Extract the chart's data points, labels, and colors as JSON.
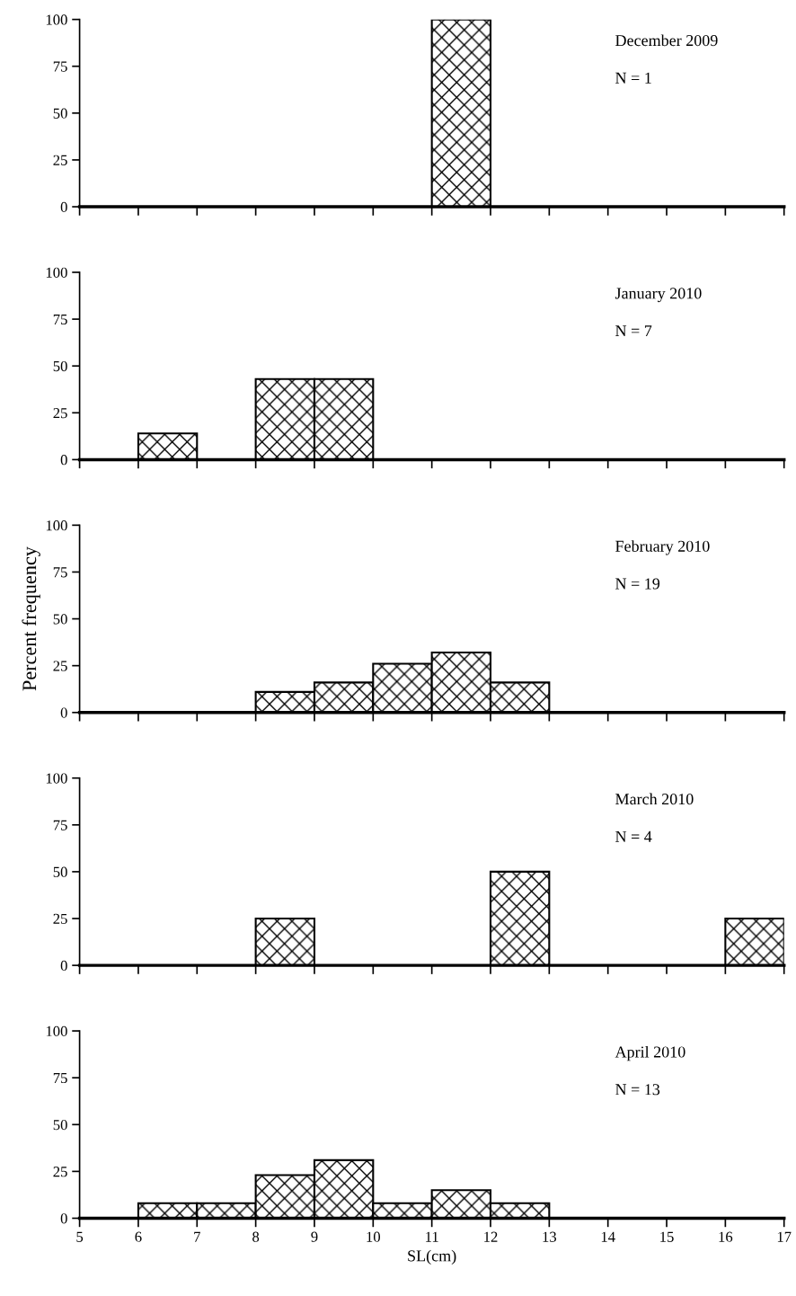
{
  "chart_data": [
    {
      "type": "histogram",
      "bins": [
        5,
        6,
        7,
        8,
        9,
        10,
        11,
        12,
        13,
        14,
        15,
        16,
        17
      ],
      "values": [
        0,
        0,
        0,
        0,
        0,
        0,
        100,
        0,
        0,
        0,
        0,
        0
      ],
      "color": "#000000",
      "annotations": [
        "December 2009",
        "N = 1"
      ],
      "xlim": [
        5,
        17
      ],
      "xticks": [
        5,
        6,
        7,
        8,
        9,
        10,
        11,
        12,
        13,
        14,
        15,
        16,
        17
      ],
      "ylim": [
        0,
        100
      ],
      "yticks": [
        0,
        25,
        50,
        75,
        100
      ],
      "tick_labels": "y",
      "grid": false,
      "legend": false
    },
    {
      "type": "histogram",
      "bins": [
        5,
        6,
        7,
        8,
        9,
        10,
        11,
        12,
        13,
        14,
        15,
        16,
        17
      ],
      "values": [
        0,
        14,
        0,
        43,
        43,
        0,
        0,
        0,
        0,
        0,
        0,
        0
      ],
      "color": "#000000",
      "annotations": [
        "January 2010",
        "N = 7"
      ],
      "xlim": [
        5,
        17
      ],
      "xticks": [
        5,
        6,
        7,
        8,
        9,
        10,
        11,
        12,
        13,
        14,
        15,
        16,
        17
      ],
      "ylim": [
        0,
        100
      ],
      "yticks": [
        0,
        25,
        50,
        75,
        100
      ],
      "tick_labels": "y",
      "grid": false,
      "legend": false
    },
    {
      "type": "histogram",
      "bins": [
        5,
        6,
        7,
        8,
        9,
        10,
        11,
        12,
        13,
        14,
        15,
        16,
        17
      ],
      "values": [
        0,
        0,
        0,
        11,
        16,
        26,
        32,
        16,
        0,
        0,
        0,
        0
      ],
      "color": "#000000",
      "ylabel": "Percent frequency",
      "annotations": [
        "February 2010",
        "N = 19"
      ],
      "xlim": [
        5,
        17
      ],
      "xticks": [
        5,
        6,
        7,
        8,
        9,
        10,
        11,
        12,
        13,
        14,
        15,
        16,
        17
      ],
      "ylim": [
        0,
        100
      ],
      "yticks": [
        0,
        25,
        50,
        75,
        100
      ],
      "tick_labels": "y",
      "grid": false,
      "legend": false
    },
    {
      "type": "histogram",
      "bins": [
        5,
        6,
        7,
        8,
        9,
        10,
        11,
        12,
        13,
        14,
        15,
        16,
        17
      ],
      "values": [
        0,
        0,
        0,
        25,
        0,
        0,
        0,
        50,
        0,
        0,
        0,
        25
      ],
      "color": "#000000",
      "annotations": [
        "March 2010",
        "N = 4"
      ],
      "xlim": [
        5,
        17
      ],
      "xticks": [
        5,
        6,
        7,
        8,
        9,
        10,
        11,
        12,
        13,
        14,
        15,
        16,
        17
      ],
      "ylim": [
        0,
        100
      ],
      "yticks": [
        0,
        25,
        50,
        75,
        100
      ],
      "tick_labels": "y",
      "grid": false,
      "legend": false
    },
    {
      "type": "histogram",
      "bins": [
        5,
        6,
        7,
        8,
        9,
        10,
        11,
        12,
        13,
        14,
        15,
        16,
        17
      ],
      "values": [
        0,
        8,
        8,
        23,
        31,
        8,
        15,
        8,
        0,
        0,
        0,
        0
      ],
      "color": "#000000",
      "xlabel": "SL(cm)",
      "annotations": [
        "April 2010",
        "N = 13"
      ],
      "xlim": [
        5,
        17
      ],
      "xticks": [
        5,
        6,
        7,
        8,
        9,
        10,
        11,
        12,
        13,
        14,
        15,
        16,
        17
      ],
      "ylim": [
        0,
        100
      ],
      "yticks": [
        0,
        25,
        50,
        75,
        100
      ],
      "grid": false,
      "legend": false
    }
  ]
}
